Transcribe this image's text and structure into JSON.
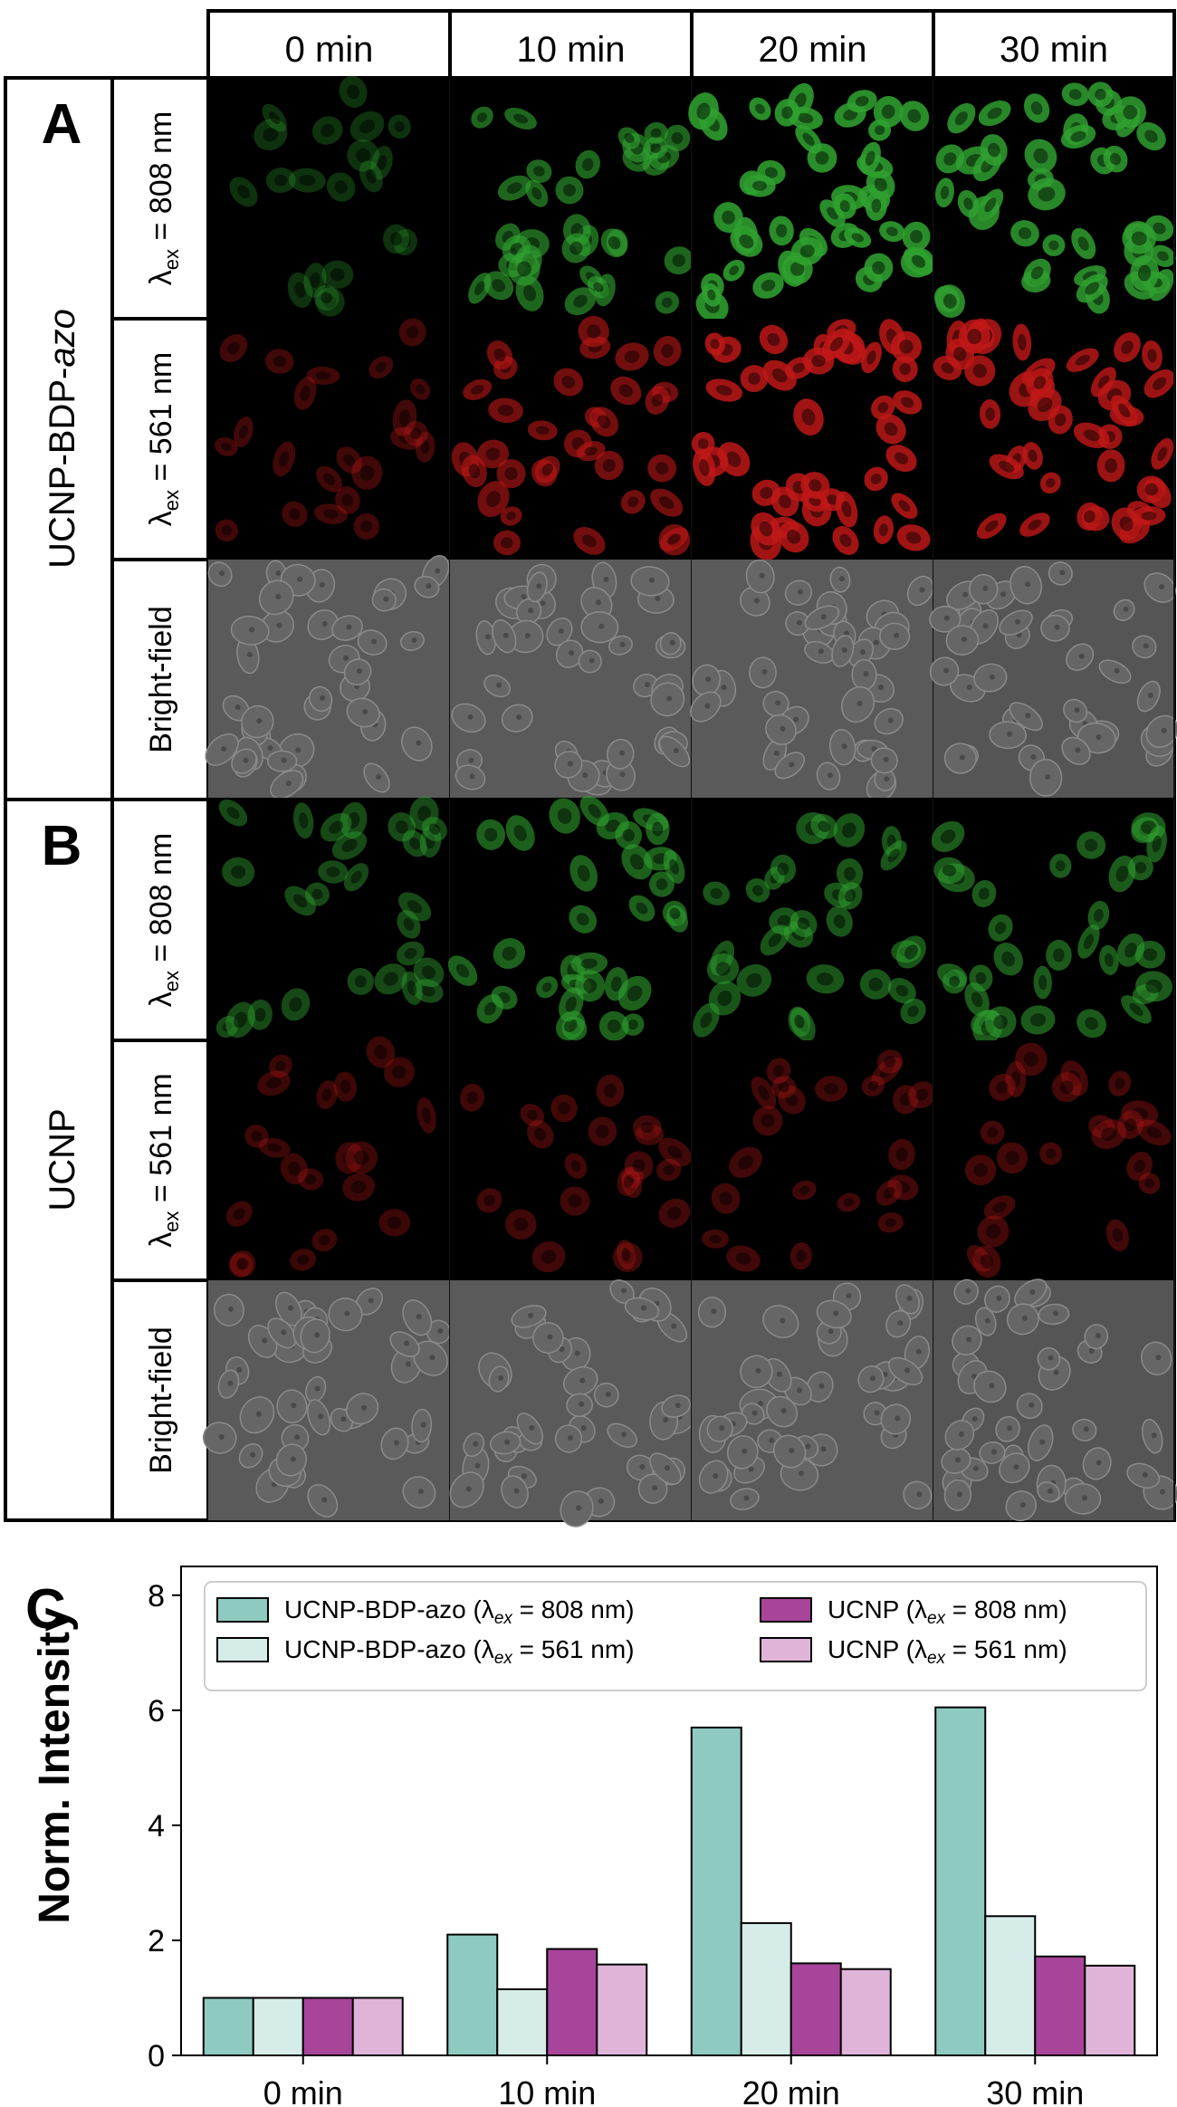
{
  "columns": [
    "0 min",
    "10 min",
    "20 min",
    "30 min"
  ],
  "panels": [
    {
      "letter": "A",
      "group_label": "UCNP-BDP-azo",
      "group_label_prefix": "UCNP-BDP-",
      "group_label_suffix": "azo",
      "rows": [
        {
          "label_pre": "λ",
          "label_sub": "ex",
          "label_post": " = 808 nm",
          "channel": "green",
          "levels": [
            0.08,
            0.55,
            0.9,
            0.85
          ]
        },
        {
          "label_pre": "λ",
          "label_sub": "ex",
          "label_post": " = 561 nm",
          "channel": "red",
          "levels": [
            0.12,
            0.5,
            0.85,
            0.8
          ]
        },
        {
          "label_pre": "",
          "label_sub": "",
          "label_post": "Bright-field",
          "channel": "gray",
          "levels": [
            1,
            1,
            1,
            1
          ]
        }
      ]
    },
    {
      "letter": "B",
      "group_label": "UCNP",
      "group_label_prefix": "UCNP",
      "group_label_suffix": "",
      "rows": [
        {
          "label_pre": "λ",
          "label_sub": "ex",
          "label_post": " = 808 nm",
          "channel": "green",
          "levels": [
            0.3,
            0.5,
            0.4,
            0.45
          ]
        },
        {
          "label_pre": "λ",
          "label_sub": "ex",
          "label_post": " = 561 nm",
          "channel": "red",
          "levels": [
            0.08,
            0.12,
            0.12,
            0.14
          ]
        },
        {
          "label_pre": "",
          "label_sub": "",
          "label_post": "Bright-field",
          "channel": "gray",
          "levels": [
            1,
            1,
            1,
            1
          ]
        }
      ]
    }
  ],
  "chart_letter": "C",
  "colors": {
    "ucnp_bdp_808": "#8ecac0",
    "ucnp_bdp_561": "#d6ece8",
    "ucnp_808": "#a8449a",
    "ucnp_561": "#e0b4d8",
    "green_channel": "#2fa02f",
    "red_channel": "#c01818"
  },
  "chart_data": {
    "type": "bar",
    "categories": [
      "0 min",
      "10 min",
      "20 min",
      "30 min"
    ],
    "series": [
      {
        "name_main": "UCNP-BDP-azo (",
        "name_lambda": "λ",
        "name_sub": "ex",
        "name_tail": " = 808 nm)",
        "values": [
          1.0,
          2.1,
          5.7,
          6.05
        ],
        "color": "#8ecac0"
      },
      {
        "name_main": "UCNP-BDP-azo (",
        "name_lambda": "λ",
        "name_sub": "ex",
        "name_tail": " = 561 nm)",
        "values": [
          1.0,
          1.15,
          2.3,
          2.42
        ],
        "color": "#d6ece8"
      },
      {
        "name_main": "UCNP (",
        "name_lambda": "λ",
        "name_sub": "ex",
        "name_tail": " = 808 nm)",
        "values": [
          1.0,
          1.85,
          1.6,
          1.72
        ],
        "color": "#a8449a"
      },
      {
        "name_main": "UCNP (",
        "name_lambda": "λ",
        "name_sub": "ex",
        "name_tail": " = 561 nm)",
        "values": [
          1.0,
          1.58,
          1.5,
          1.56
        ],
        "color": "#e0b4d8"
      }
    ],
    "ylabel": "Norm. Intensity",
    "xlabel": "",
    "ylim": [
      0,
      8.5
    ],
    "yticks": [
      "0",
      "2",
      "4",
      "6",
      "8"
    ],
    "legend_position": "top",
    "grid": false
  }
}
